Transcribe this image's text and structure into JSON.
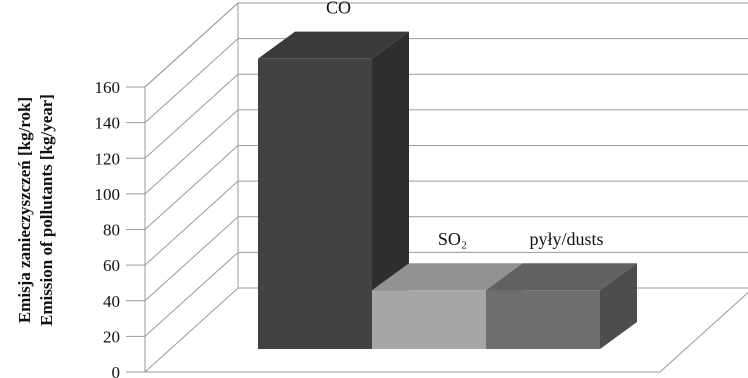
{
  "chart_data": {
    "type": "bar",
    "three_d": true,
    "categories": [
      "CO",
      "SO₂",
      "pyły/dusts"
    ],
    "values": [
      163,
      33,
      33
    ],
    "colors": {
      "CO": "#424242",
      "SO₂": "#a6a6a6",
      "pyły/dusts": "#6e6e6e"
    },
    "ylabel_lines": [
      "Emisja zanieczyszczeń [kg/rok]",
      "Emission of pollutants [kg/year]"
    ],
    "xlabel": "",
    "title": "",
    "ylim": [
      0,
      160
    ],
    "yticks": [
      0,
      20,
      40,
      60,
      80,
      100,
      120,
      140,
      160
    ],
    "grid": true,
    "legend": "none"
  }
}
